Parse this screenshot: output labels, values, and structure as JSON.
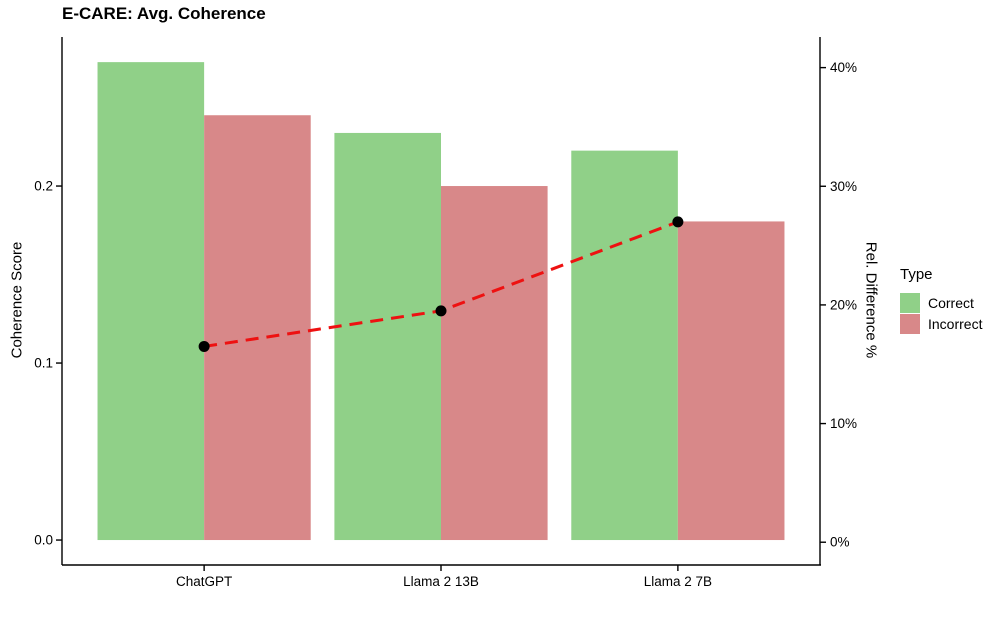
{
  "chart_data": {
    "type": "bar",
    "title": "E-CARE: Avg. Coherence",
    "categories": [
      "ChatGPT",
      "Llama 2 13B",
      "Llama 2 7B"
    ],
    "series": [
      {
        "name": "Correct",
        "type": "bar",
        "axis": "left",
        "color": "#90D088",
        "values": [
          0.27,
          0.23,
          0.22
        ]
      },
      {
        "name": "Incorrect",
        "type": "bar",
        "axis": "left",
        "color": "#D88889",
        "values": [
          0.24,
          0.2,
          0.18
        ]
      }
    ],
    "line_series": {
      "name": "Rel. Difference %",
      "type": "line",
      "axis": "right",
      "color": "#EE1111",
      "point_color": "#000000",
      "values": [
        16.5,
        19.5,
        27.0
      ]
    },
    "left_axis": {
      "label": "Coherence Score",
      "tick_values": [
        0,
        0.1,
        0.2
      ],
      "tick_labels": [
        "0.0",
        "0.1",
        "0.2"
      ],
      "range": [
        -0.0141,
        0.2842
      ]
    },
    "right_axis": {
      "label": "Rel. Difference %",
      "tick_values": [
        0,
        10,
        20,
        30,
        40
      ],
      "tick_labels": [
        "0%",
        "10%",
        "20%",
        "30%",
        "40%"
      ],
      "range": [
        -1.92,
        42.58
      ]
    },
    "legend": {
      "title": "Type",
      "position": "right",
      "items": [
        {
          "label": "Correct",
          "color": "#90D088"
        },
        {
          "label": "Incorrect",
          "color": "#D88889"
        }
      ]
    },
    "grid": false,
    "axis_color": "#000000",
    "text_color": "#000000"
  }
}
